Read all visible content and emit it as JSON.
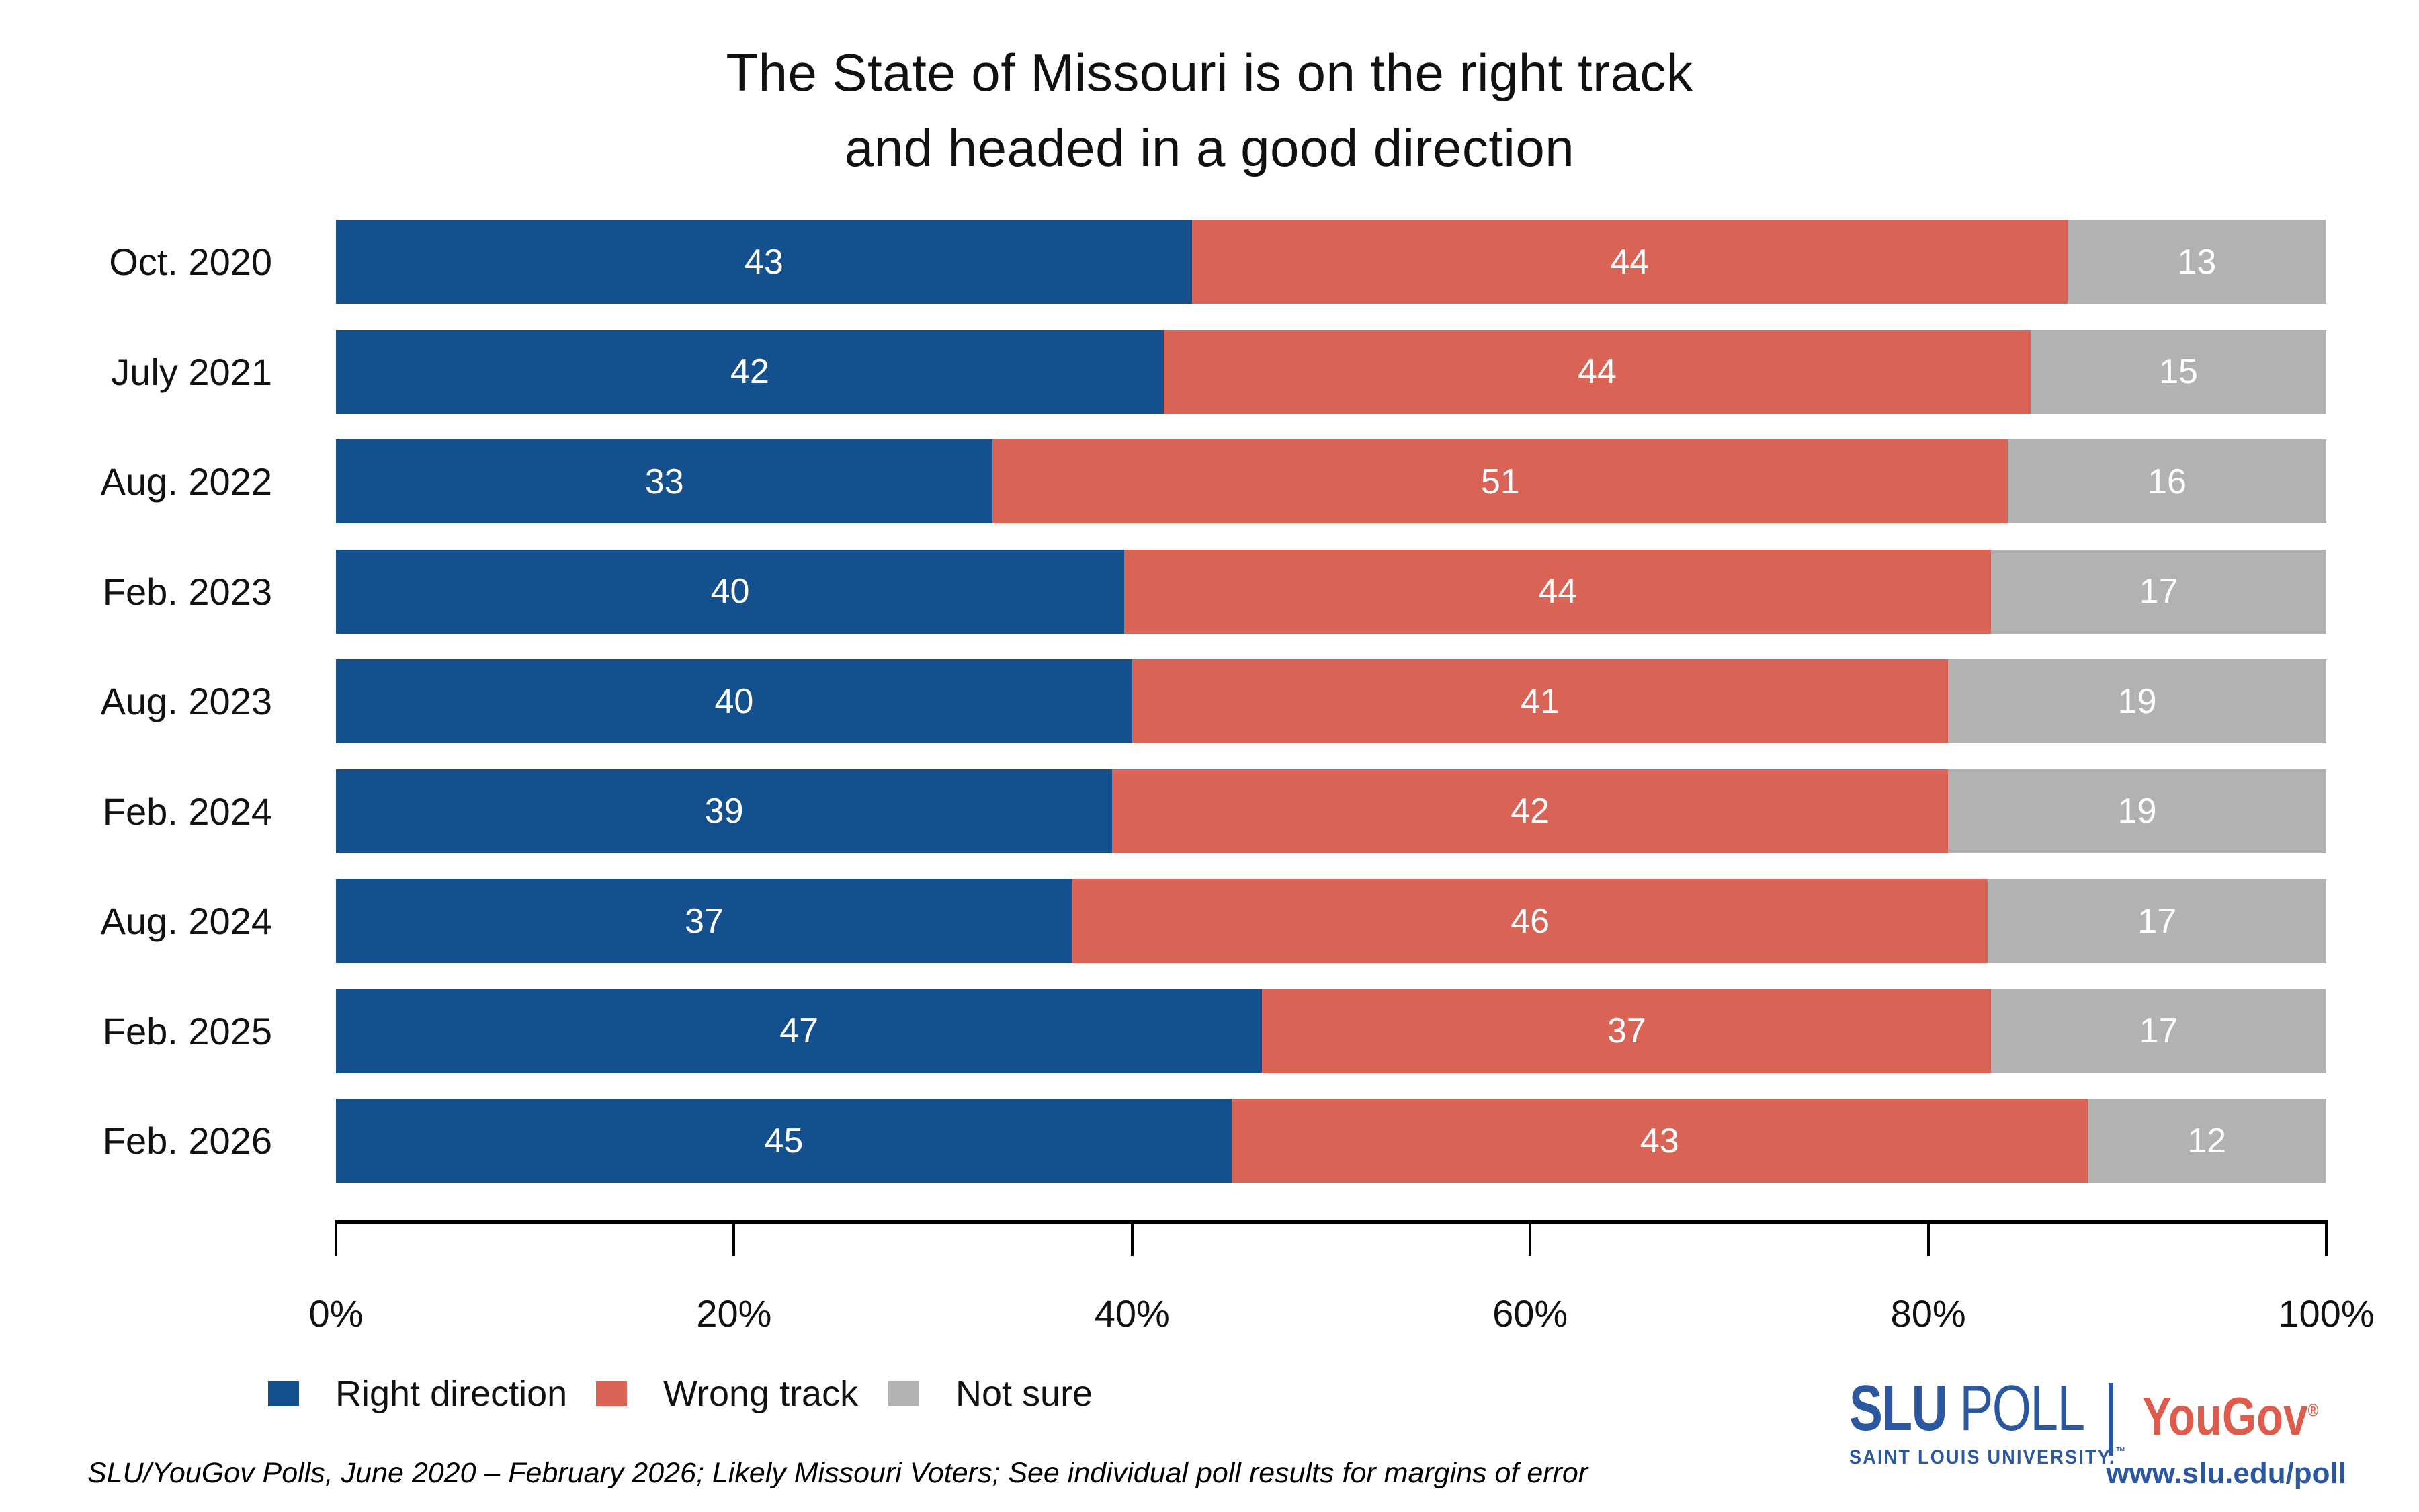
{
  "title": {
    "line1": "The State of Missouri is on the right track",
    "line2": "and headed in a good direction"
  },
  "chart_data": {
    "type": "bar",
    "stacked": true,
    "orientation": "horizontal",
    "title": "The State of Missouri is on the right track and headed in a good direction",
    "categories": [
      "Oct. 2020",
      "July 2021",
      "Aug. 2022",
      "Feb. 2023",
      "Aug. 2023",
      "Feb. 2024",
      "Aug. 2024",
      "Feb. 2025",
      "Feb. 2026"
    ],
    "series": [
      {
        "name": "Right direction",
        "color": "#15508E",
        "values": [
          43,
          42,
          33,
          40,
          40,
          39,
          37,
          47,
          45
        ]
      },
      {
        "name": "Wrong track",
        "color": "#D96355",
        "values": [
          44,
          44,
          51,
          44,
          41,
          42,
          46,
          37,
          43
        ]
      },
      {
        "name": "Not sure",
        "color": "#B3B2B2",
        "values": [
          13,
          15,
          16,
          17,
          19,
          19,
          17,
          17,
          12
        ]
      }
    ],
    "xlabel": "",
    "ylabel": "",
    "axis": {
      "min": 0,
      "max": 100,
      "ticks": [
        "0%",
        "20%",
        "40%",
        "60%",
        "80%",
        "100%"
      ]
    },
    "grid": false,
    "legend_position": "bottom-left",
    "value_labels": "inside-center-white"
  },
  "legend": {
    "items": [
      {
        "label": "Right direction",
        "color": "#15508E"
      },
      {
        "label": "Wrong track",
        "color": "#D96355"
      },
      {
        "label": "Not sure",
        "color": "#B3B2B2"
      }
    ]
  },
  "footer": {
    "text": "SLU/YouGov Polls, June 2020 – February 2026; Likely Missouri Voters; See individual poll results for margins of error"
  },
  "branding": {
    "slu": "SLU",
    "poll": " POLL",
    "slu_subtitle": "SAINT LOUIS UNIVERSITY.",
    "slu_tm": "™",
    "yougov": "YouGov",
    "yougov_reg": "®",
    "url": "www.slu.edu/poll",
    "navy": "#2A57A0",
    "red": "#DF5B4C"
  }
}
